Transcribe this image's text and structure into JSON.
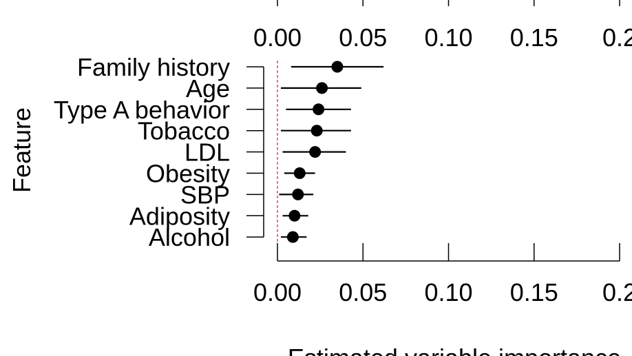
{
  "chart_data": {
    "type": "scatter",
    "subtype": "dot-and-interval (forest) plot",
    "xlabel": "Estimated variable importance",
    "ylabel": "Feature",
    "xlim": [
      0,
      0.2
    ],
    "x_ticks": [
      "0.00",
      "0.05",
      "0.10",
      "0.15",
      "0.2"
    ],
    "x_tick_values": [
      0,
      0.05,
      0.1,
      0.15,
      0.2
    ],
    "reference_line": {
      "x": 0,
      "color": "#e41a1c",
      "style": "dashed"
    },
    "grid": false,
    "legend": "none",
    "categories": [
      "Family history",
      "Age",
      "Type A behavior",
      "Tobacco",
      "LDL",
      "Obesity",
      "SBP",
      "Adiposity",
      "Alcohol"
    ],
    "estimates": [
      0.035,
      0.026,
      0.024,
      0.023,
      0.022,
      0.013,
      0.012,
      0.01,
      0.009
    ],
    "ci_lower": [
      0.008,
      0.002,
      0.005,
      0.002,
      0.003,
      0.004,
      0.001,
      0.003,
      0.002
    ],
    "ci_upper": [
      0.062,
      0.049,
      0.043,
      0.043,
      0.04,
      0.022,
      0.021,
      0.018,
      0.017
    ]
  }
}
